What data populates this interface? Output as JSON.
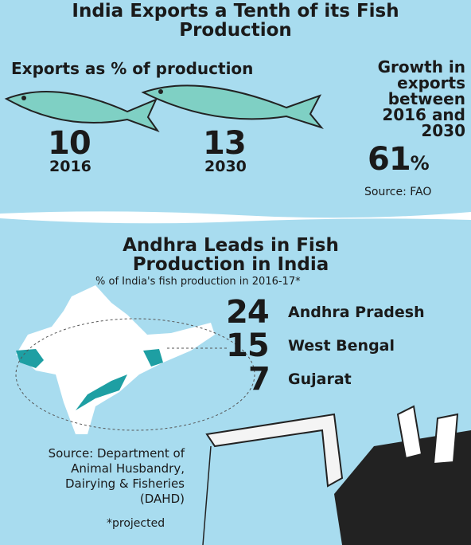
{
  "exports": {
    "title": "India Exports a Tenth of its Fish Production",
    "subtitle": "Exports as % of production",
    "items": [
      {
        "value": 10,
        "year": "2016"
      },
      {
        "value": 13,
        "year": "2030"
      }
    ],
    "growth": {
      "label": "Growth in exports between 2016 and 2030",
      "value": 61,
      "unit": "%"
    },
    "source": "Source: FAO"
  },
  "production": {
    "title": "Andhra Leads in Fish Production in India",
    "subtitle": "% of India's fish production in 2016-17*",
    "states": [
      {
        "value": 24,
        "name": "Andhra Pradesh"
      },
      {
        "value": 15,
        "name": "West Bengal"
      },
      {
        "value": 7,
        "name": "Gujarat"
      }
    ],
    "source": "Source: Department of Animal Husbandry, Dairying & Fisheries (DAHD)",
    "note": "*projected"
  }
}
